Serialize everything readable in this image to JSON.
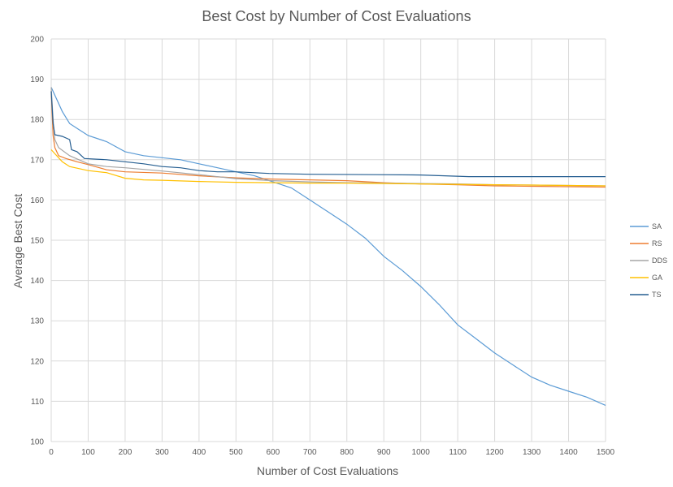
{
  "chart_data": {
    "type": "line",
    "title": "Best Cost by Number of Cost Evaluations",
    "xlabel": "Number of Cost Evaluations",
    "ylabel": "Average Best Cost",
    "xlim": [
      0,
      1500
    ],
    "ylim": [
      100,
      200
    ],
    "xticks": [
      0,
      100,
      200,
      300,
      400,
      500,
      600,
      700,
      800,
      900,
      1000,
      1100,
      1200,
      1300,
      1400,
      1500
    ],
    "yticks": [
      100,
      110,
      120,
      130,
      140,
      150,
      160,
      170,
      180,
      190,
      200
    ],
    "grid": true,
    "legend_position": "right",
    "series": [
      {
        "name": "SA",
        "color": "#5b9bd5",
        "points": [
          [
            0,
            188
          ],
          [
            5,
            187
          ],
          [
            10,
            186
          ],
          [
            20,
            184
          ],
          [
            30,
            182
          ],
          [
            50,
            179
          ],
          [
            75,
            177.5
          ],
          [
            100,
            176
          ],
          [
            150,
            174.5
          ],
          [
            200,
            172
          ],
          [
            250,
            171
          ],
          [
            300,
            170.5
          ],
          [
            350,
            170
          ],
          [
            400,
            169
          ],
          [
            450,
            168
          ],
          [
            500,
            167
          ],
          [
            550,
            166
          ],
          [
            600,
            164.5
          ],
          [
            650,
            163
          ],
          [
            700,
            160
          ],
          [
            750,
            157
          ],
          [
            800,
            154
          ],
          [
            850,
            150.5
          ],
          [
            900,
            146
          ],
          [
            950,
            142.5
          ],
          [
            1000,
            138.5
          ],
          [
            1050,
            134
          ],
          [
            1100,
            129
          ],
          [
            1150,
            125.5
          ],
          [
            1200,
            122
          ],
          [
            1250,
            119
          ],
          [
            1300,
            116
          ],
          [
            1350,
            114
          ],
          [
            1400,
            112.5
          ],
          [
            1450,
            111
          ],
          [
            1500,
            109
          ]
        ]
      },
      {
        "name": "RS",
        "color": "#ed7d31",
        "points": [
          [
            0,
            187
          ],
          [
            5,
            176
          ],
          [
            10,
            173
          ],
          [
            20,
            171
          ],
          [
            40,
            170.3
          ],
          [
            70,
            169.5
          ],
          [
            100,
            168.8
          ],
          [
            150,
            167.5
          ],
          [
            200,
            167
          ],
          [
            300,
            166.7
          ],
          [
            400,
            166
          ],
          [
            500,
            165.5
          ],
          [
            600,
            165.2
          ],
          [
            700,
            165
          ],
          [
            800,
            164.8
          ],
          [
            900,
            164.3
          ],
          [
            1000,
            164
          ],
          [
            1100,
            163.8
          ],
          [
            1200,
            163.5
          ],
          [
            1300,
            163.4
          ],
          [
            1400,
            163.3
          ],
          [
            1500,
            163.2
          ]
        ]
      },
      {
        "name": "DDS",
        "color": "#a5a5a5",
        "points": [
          [
            0,
            188
          ],
          [
            5,
            180
          ],
          [
            10,
            175
          ],
          [
            20,
            173
          ],
          [
            50,
            171
          ],
          [
            100,
            169
          ],
          [
            150,
            168.3
          ],
          [
            200,
            168
          ],
          [
            300,
            167.2
          ],
          [
            400,
            166.3
          ],
          [
            500,
            165.3
          ],
          [
            600,
            164.8
          ],
          [
            700,
            164.5
          ],
          [
            800,
            164.3
          ],
          [
            900,
            164.2
          ],
          [
            1000,
            164.1
          ],
          [
            1100,
            164
          ],
          [
            1200,
            163.8
          ],
          [
            1300,
            163.7
          ],
          [
            1400,
            163.6
          ],
          [
            1500,
            163.5
          ]
        ]
      },
      {
        "name": "GA",
        "color": "#ffc000",
        "points": [
          [
            0,
            172.5
          ],
          [
            10,
            171.5
          ],
          [
            20,
            170.5
          ],
          [
            30,
            169.5
          ],
          [
            50,
            168.3
          ],
          [
            100,
            167.3
          ],
          [
            150,
            166.8
          ],
          [
            200,
            165.4
          ],
          [
            250,
            165
          ],
          [
            300,
            164.9
          ],
          [
            400,
            164.6
          ],
          [
            500,
            164.4
          ],
          [
            600,
            164.3
          ],
          [
            700,
            164.2
          ],
          [
            800,
            164.2
          ],
          [
            900,
            164.1
          ],
          [
            1000,
            164
          ],
          [
            1100,
            163.9
          ],
          [
            1200,
            163.8
          ],
          [
            1300,
            163.7
          ],
          [
            1400,
            163.6
          ],
          [
            1500,
            163.5
          ]
        ]
      },
      {
        "name": "TS",
        "color": "#255e91",
        "points": [
          [
            0,
            187
          ],
          [
            5,
            179
          ],
          [
            10,
            176.2
          ],
          [
            30,
            175.8
          ],
          [
            50,
            175
          ],
          [
            55,
            172.5
          ],
          [
            70,
            172
          ],
          [
            90,
            170.3
          ],
          [
            150,
            170
          ],
          [
            200,
            169.5
          ],
          [
            250,
            169
          ],
          [
            300,
            168.3
          ],
          [
            350,
            168
          ],
          [
            400,
            167.3
          ],
          [
            450,
            167
          ],
          [
            500,
            167
          ],
          [
            590,
            166.6
          ],
          [
            700,
            166.4
          ],
          [
            880,
            166.3
          ],
          [
            1000,
            166.2
          ],
          [
            1130,
            165.8
          ],
          [
            1300,
            165.8
          ],
          [
            1500,
            165.8
          ]
        ]
      }
    ]
  }
}
